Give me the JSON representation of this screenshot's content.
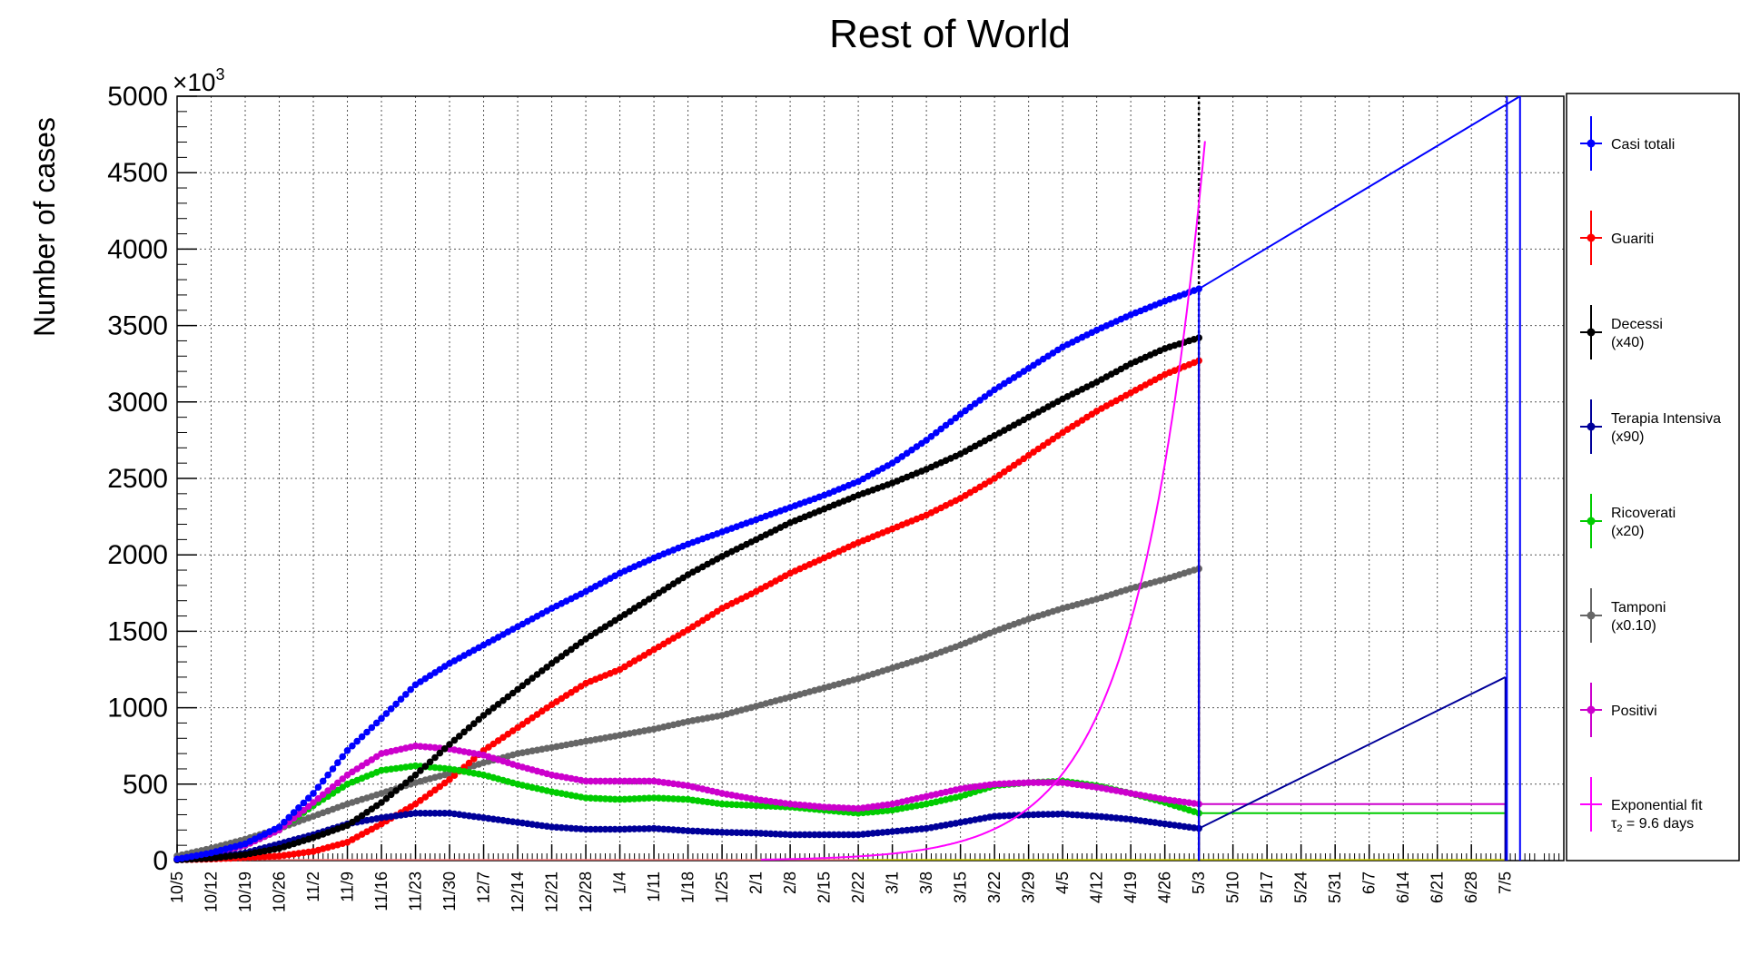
{
  "chart_data": {
    "type": "line",
    "title": "Rest of World",
    "ylabel": "Number of cases",
    "y_exponent_label": "×10",
    "y_exponent_power": "3",
    "ylim": [
      0,
      5000
    ],
    "yticks": [
      "0",
      "500",
      "1000",
      "1500",
      "2000",
      "2500",
      "3000",
      "3500",
      "4000",
      "4500",
      "5000"
    ],
    "xlim_days": [
      0,
      285
    ],
    "x_ticks": [
      {
        "label": "10/5",
        "day": 0
      },
      {
        "label": "10/12",
        "day": 7
      },
      {
        "label": "10/19",
        "day": 14
      },
      {
        "label": "10/26",
        "day": 21
      },
      {
        "label": "11/2",
        "day": 28
      },
      {
        "label": "11/9",
        "day": 35
      },
      {
        "label": "11/16",
        "day": 42
      },
      {
        "label": "11/23",
        "day": 49
      },
      {
        "label": "11/30",
        "day": 56
      },
      {
        "label": "12/7",
        "day": 63
      },
      {
        "label": "12/14",
        "day": 70
      },
      {
        "label": "12/21",
        "day": 77
      },
      {
        "label": "12/28",
        "day": 84
      },
      {
        "label": "1/4",
        "day": 91
      },
      {
        "label": "1/11",
        "day": 98
      },
      {
        "label": "1/18",
        "day": 105
      },
      {
        "label": "1/25",
        "day": 112
      },
      {
        "label": "2/1",
        "day": 119
      },
      {
        "label": "2/8",
        "day": 126
      },
      {
        "label": "2/15",
        "day": 133
      },
      {
        "label": "2/22",
        "day": 140
      },
      {
        "label": "3/1",
        "day": 147
      },
      {
        "label": "3/8",
        "day": 154
      },
      {
        "label": "3/15",
        "day": 161
      },
      {
        "label": "3/22",
        "day": 168
      },
      {
        "label": "3/29",
        "day": 175
      },
      {
        "label": "4/5",
        "day": 182
      },
      {
        "label": "4/12",
        "day": 189
      },
      {
        "label": "4/19",
        "day": 196
      },
      {
        "label": "4/26",
        "day": 203
      },
      {
        "label": "5/3",
        "day": 210
      },
      {
        "label": "5/10",
        "day": 217
      },
      {
        "label": "5/17",
        "day": 224
      },
      {
        "label": "5/24",
        "day": 231
      },
      {
        "label": "5/31",
        "day": 238
      },
      {
        "label": "6/7",
        "day": 245
      },
      {
        "label": "6/14",
        "day": 252
      },
      {
        "label": "6/21",
        "day": 259
      },
      {
        "label": "6/28",
        "day": 266
      },
      {
        "label": "7/5",
        "day": 273
      }
    ],
    "marker_line_day": 210,
    "grid": true,
    "legend_position": "right",
    "series": [
      {
        "name": "Casi totali",
        "color": "#0000ff",
        "points": [
          [
            0,
            10
          ],
          [
            7,
            50
          ],
          [
            14,
            110
          ],
          [
            21,
            220
          ],
          [
            28,
            440
          ],
          [
            35,
            720
          ],
          [
            42,
            930
          ],
          [
            49,
            1150
          ],
          [
            56,
            1290
          ],
          [
            63,
            1410
          ],
          [
            70,
            1530
          ],
          [
            77,
            1650
          ],
          [
            84,
            1760
          ],
          [
            91,
            1880
          ],
          [
            98,
            1980
          ],
          [
            105,
            2070
          ],
          [
            112,
            2150
          ],
          [
            119,
            2230
          ],
          [
            126,
            2310
          ],
          [
            133,
            2390
          ],
          [
            140,
            2480
          ],
          [
            147,
            2600
          ],
          [
            154,
            2750
          ],
          [
            161,
            2920
          ],
          [
            168,
            3080
          ],
          [
            175,
            3220
          ],
          [
            182,
            3360
          ],
          [
            189,
            3470
          ],
          [
            196,
            3570
          ],
          [
            203,
            3660
          ],
          [
            210,
            3740
          ]
        ],
        "projection": [
          [
            210,
            3740
          ],
          [
            276,
            5000
          ]
        ]
      },
      {
        "name": "Guariti",
        "color": "#ff0000",
        "points": [
          [
            0,
            5
          ],
          [
            7,
            10
          ],
          [
            14,
            20
          ],
          [
            21,
            30
          ],
          [
            28,
            60
          ],
          [
            35,
            120
          ],
          [
            42,
            240
          ],
          [
            49,
            370
          ],
          [
            56,
            530
          ],
          [
            63,
            720
          ],
          [
            70,
            870
          ],
          [
            77,
            1020
          ],
          [
            84,
            1160
          ],
          [
            91,
            1250
          ],
          [
            98,
            1380
          ],
          [
            105,
            1510
          ],
          [
            112,
            1650
          ],
          [
            119,
            1760
          ],
          [
            126,
            1880
          ],
          [
            133,
            1980
          ],
          [
            140,
            2080
          ],
          [
            147,
            2170
          ],
          [
            154,
            2260
          ],
          [
            161,
            2370
          ],
          [
            168,
            2500
          ],
          [
            175,
            2650
          ],
          [
            182,
            2800
          ],
          [
            189,
            2940
          ],
          [
            196,
            3060
          ],
          [
            203,
            3180
          ],
          [
            210,
            3270
          ]
        ]
      },
      {
        "name": "Decessi\n(x40)",
        "color": "#000000",
        "points": [
          [
            0,
            5
          ],
          [
            7,
            15
          ],
          [
            14,
            40
          ],
          [
            21,
            80
          ],
          [
            28,
            150
          ],
          [
            35,
            230
          ],
          [
            42,
            380
          ],
          [
            49,
            560
          ],
          [
            56,
            760
          ],
          [
            63,
            950
          ],
          [
            70,
            1120
          ],
          [
            77,
            1290
          ],
          [
            84,
            1450
          ],
          [
            91,
            1590
          ],
          [
            98,
            1730
          ],
          [
            105,
            1870
          ],
          [
            112,
            1990
          ],
          [
            119,
            2100
          ],
          [
            126,
            2210
          ],
          [
            133,
            2300
          ],
          [
            140,
            2390
          ],
          [
            147,
            2470
          ],
          [
            154,
            2560
          ],
          [
            161,
            2660
          ],
          [
            168,
            2780
          ],
          [
            175,
            2900
          ],
          [
            182,
            3020
          ],
          [
            189,
            3130
          ],
          [
            196,
            3250
          ],
          [
            203,
            3350
          ],
          [
            210,
            3420
          ]
        ]
      },
      {
        "name": "Terapia Intensiva\n(x90)",
        "color": "#000099",
        "points": [
          [
            0,
            5
          ],
          [
            7,
            20
          ],
          [
            14,
            50
          ],
          [
            21,
            110
          ],
          [
            28,
            170
          ],
          [
            35,
            240
          ],
          [
            42,
            280
          ],
          [
            49,
            310
          ],
          [
            56,
            310
          ],
          [
            63,
            280
          ],
          [
            70,
            250
          ],
          [
            77,
            220
          ],
          [
            84,
            205
          ],
          [
            91,
            205
          ],
          [
            98,
            210
          ],
          [
            105,
            195
          ],
          [
            112,
            185
          ],
          [
            119,
            180
          ],
          [
            126,
            170
          ],
          [
            133,
            170
          ],
          [
            140,
            170
          ],
          [
            147,
            190
          ],
          [
            154,
            210
          ],
          [
            161,
            250
          ],
          [
            168,
            290
          ],
          [
            175,
            300
          ],
          [
            182,
            305
          ],
          [
            189,
            290
          ],
          [
            196,
            270
          ],
          [
            203,
            240
          ],
          [
            210,
            210
          ]
        ],
        "projection": [
          [
            210,
            210
          ],
          [
            273,
            1200
          ]
        ]
      },
      {
        "name": "Ricoverati\n(x20)",
        "color": "#00cc00",
        "points": [
          [
            0,
            10
          ],
          [
            7,
            40
          ],
          [
            14,
            100
          ],
          [
            21,
            200
          ],
          [
            28,
            360
          ],
          [
            35,
            500
          ],
          [
            42,
            590
          ],
          [
            49,
            620
          ],
          [
            56,
            600
          ],
          [
            63,
            560
          ],
          [
            70,
            500
          ],
          [
            77,
            450
          ],
          [
            84,
            410
          ],
          [
            91,
            400
          ],
          [
            98,
            410
          ],
          [
            105,
            400
          ],
          [
            112,
            370
          ],
          [
            119,
            360
          ],
          [
            126,
            350
          ],
          [
            133,
            330
          ],
          [
            140,
            310
          ],
          [
            147,
            330
          ],
          [
            154,
            370
          ],
          [
            161,
            420
          ],
          [
            168,
            490
          ],
          [
            175,
            510
          ],
          [
            182,
            520
          ],
          [
            189,
            490
          ],
          [
            196,
            440
          ],
          [
            203,
            380
          ],
          [
            210,
            310
          ]
        ],
        "projection": [
          [
            210,
            310
          ],
          [
            273,
            310
          ]
        ]
      },
      {
        "name": "Tamponi\n(x0.10)",
        "color": "#666666",
        "points": [
          [
            0,
            30
          ],
          [
            7,
            80
          ],
          [
            14,
            140
          ],
          [
            21,
            210
          ],
          [
            28,
            290
          ],
          [
            35,
            370
          ],
          [
            42,
            440
          ],
          [
            49,
            510
          ],
          [
            56,
            570
          ],
          [
            63,
            640
          ],
          [
            70,
            700
          ],
          [
            77,
            740
          ],
          [
            84,
            780
          ],
          [
            91,
            820
          ],
          [
            98,
            860
          ],
          [
            105,
            910
          ],
          [
            112,
            950
          ],
          [
            119,
            1010
          ],
          [
            126,
            1070
          ],
          [
            133,
            1130
          ],
          [
            140,
            1190
          ],
          [
            147,
            1260
          ],
          [
            154,
            1330
          ],
          [
            161,
            1410
          ],
          [
            168,
            1500
          ],
          [
            175,
            1580
          ],
          [
            182,
            1650
          ],
          [
            189,
            1710
          ],
          [
            196,
            1780
          ],
          [
            203,
            1840
          ],
          [
            210,
            1910
          ]
        ]
      },
      {
        "name": "Positivi",
        "color": "#cc00cc",
        "points": [
          [
            0,
            10
          ],
          [
            7,
            40
          ],
          [
            14,
            100
          ],
          [
            21,
            200
          ],
          [
            28,
            380
          ],
          [
            35,
            560
          ],
          [
            42,
            700
          ],
          [
            49,
            750
          ],
          [
            56,
            730
          ],
          [
            63,
            690
          ],
          [
            70,
            620
          ],
          [
            77,
            560
          ],
          [
            84,
            520
          ],
          [
            91,
            520
          ],
          [
            98,
            520
          ],
          [
            105,
            490
          ],
          [
            112,
            440
          ],
          [
            119,
            400
          ],
          [
            126,
            370
          ],
          [
            133,
            350
          ],
          [
            140,
            340
          ],
          [
            147,
            370
          ],
          [
            154,
            420
          ],
          [
            161,
            470
          ],
          [
            168,
            500
          ],
          [
            175,
            510
          ],
          [
            182,
            510
          ],
          [
            189,
            480
          ],
          [
            196,
            440
          ],
          [
            203,
            400
          ],
          [
            210,
            370
          ]
        ],
        "projection": [
          [
            210,
            370
          ],
          [
            273,
            370
          ]
        ]
      },
      {
        "name": "Exponential fit",
        "color": "#ff00ff",
        "fit_label": "τ₂ = 9.6 days",
        "fit_label_base": "τ",
        "fit_label_sub": "2",
        "fit_label_rest": " = 9.6 days",
        "tau_days": 9.6,
        "anchor": [
          210,
          4300
        ],
        "range_days": [
          120,
          211.3
        ]
      }
    ]
  }
}
